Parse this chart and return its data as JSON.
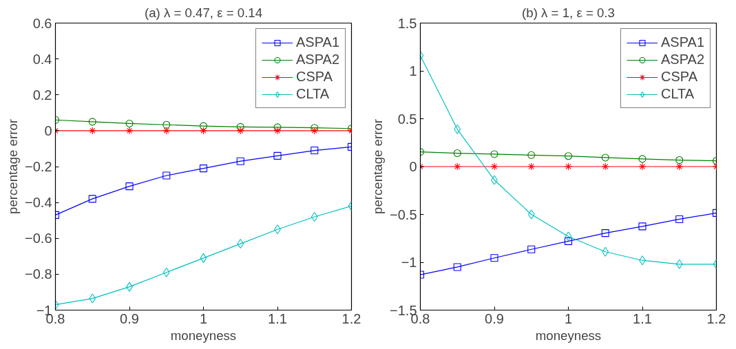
{
  "chart_data": [
    {
      "type": "line",
      "title": "(a) λ = 0.47, ε = 0.14",
      "xlabel": "moneyness",
      "ylabel": "percentage error",
      "x": [
        0.8,
        0.85,
        0.9,
        0.95,
        1.0,
        1.05,
        1.1,
        1.15,
        1.2
      ],
      "xlim": [
        0.8,
        1.2
      ],
      "xticks": [
        0.8,
        0.9,
        1,
        1.1,
        1.2
      ],
      "ylim": [
        -1,
        0.6
      ],
      "yticks": [
        -1,
        -0.8,
        -0.6,
        -0.4,
        -0.2,
        0,
        0.2,
        0.4,
        0.6
      ],
      "grid": false,
      "legend": "top right",
      "line_style": "solid",
      "series": [
        {
          "name": "ASPA1",
          "color": "#0000ff",
          "marker": "square",
          "values": [
            -0.47,
            -0.38,
            -0.31,
            -0.25,
            -0.21,
            -0.17,
            -0.14,
            -0.11,
            -0.09
          ]
        },
        {
          "name": "ASPA2",
          "color": "#008000",
          "marker": "circle",
          "values": [
            0.06,
            0.05,
            0.04,
            0.033,
            0.026,
            0.021,
            0.019,
            0.016,
            0.012
          ]
        },
        {
          "name": "CSPA",
          "color": "#ff0000",
          "marker": "cross",
          "values": [
            0,
            0,
            0,
            0,
            0,
            0,
            0,
            0,
            0
          ]
        },
        {
          "name": "CLTA",
          "color": "#00bfbf",
          "marker": "diamond",
          "values": [
            -0.97,
            -0.935,
            -0.87,
            -0.79,
            -0.71,
            -0.63,
            -0.55,
            -0.48,
            -0.42
          ]
        }
      ]
    },
    {
      "type": "line",
      "title": "(b) λ = 1, ε = 0.3",
      "xlabel": "moneyness",
      "ylabel": "percentage error",
      "x": [
        0.8,
        0.85,
        0.9,
        0.95,
        1.0,
        1.05,
        1.1,
        1.15,
        1.2
      ],
      "xlim": [
        0.8,
        1.2
      ],
      "xticks": [
        0.8,
        0.9,
        1,
        1.1,
        1.2
      ],
      "ylim": [
        -1.5,
        1.5
      ],
      "yticks": [
        -1.5,
        -1,
        -0.5,
        0,
        0.5,
        1,
        1.5
      ],
      "grid": false,
      "legend": "top right",
      "line_style": "solid",
      "series": [
        {
          "name": "ASPA1",
          "color": "#0000ff",
          "marker": "square",
          "values": [
            -1.13,
            -1.05,
            -0.955,
            -0.865,
            -0.78,
            -0.695,
            -0.625,
            -0.55,
            -0.485
          ]
        },
        {
          "name": "ASPA2",
          "color": "#008000",
          "marker": "circle",
          "values": [
            0.154,
            0.14,
            0.13,
            0.12,
            0.11,
            0.094,
            0.08,
            0.068,
            0.06
          ]
        },
        {
          "name": "CSPA",
          "color": "#ff0000",
          "marker": "cross",
          "values": [
            0,
            0,
            0,
            0,
            0,
            0,
            0,
            0,
            0
          ]
        },
        {
          "name": "CLTA",
          "color": "#00bfbf",
          "marker": "diamond",
          "values": [
            1.16,
            0.39,
            -0.14,
            -0.5,
            -0.73,
            -0.89,
            -0.98,
            -1.02,
            -1.02
          ]
        }
      ]
    }
  ]
}
